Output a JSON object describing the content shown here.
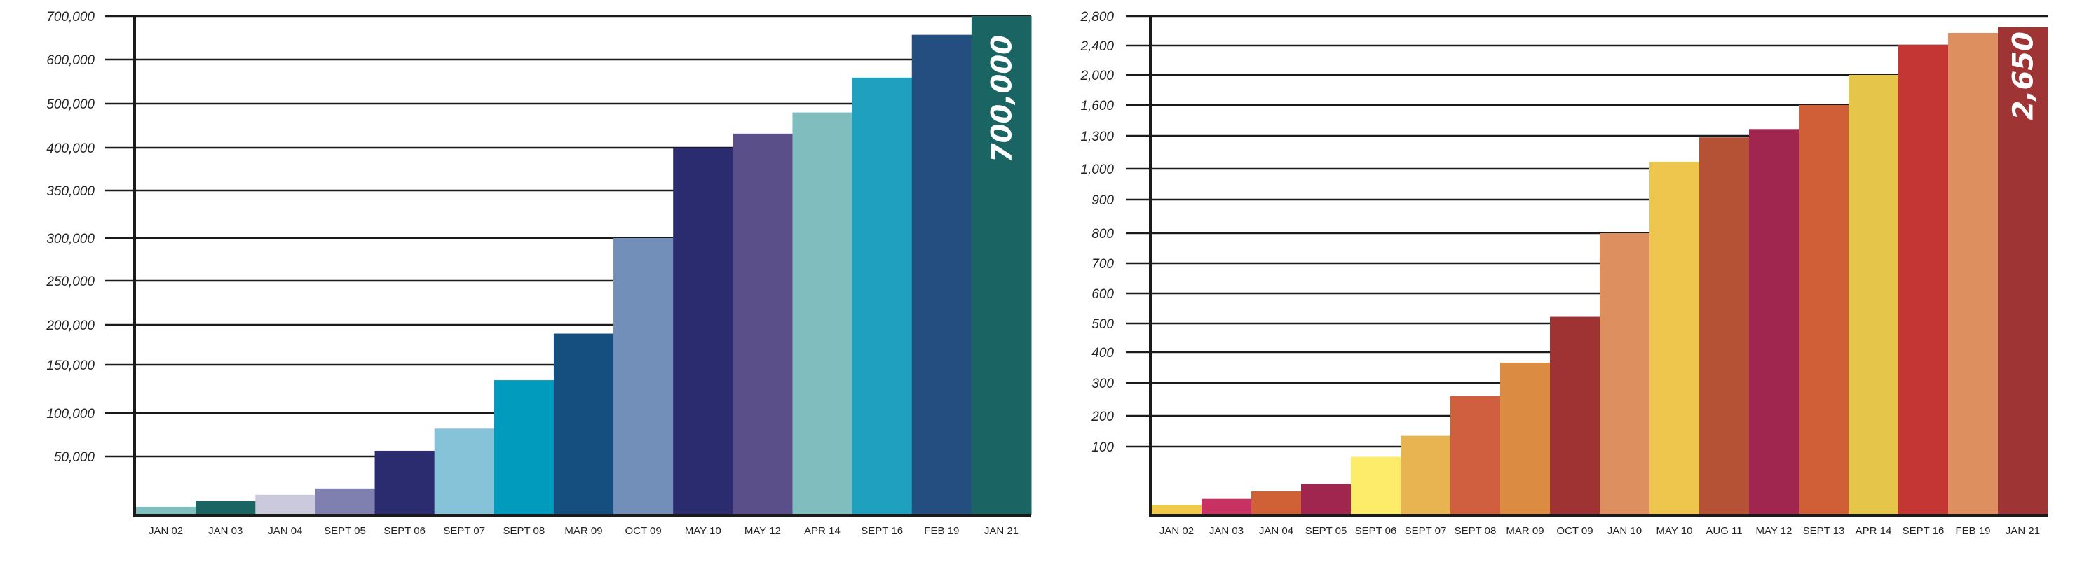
{
  "chart_data": [
    {
      "type": "bar",
      "title": "",
      "xlabel": "",
      "ylabel": "",
      "grid": true,
      "ylim": [
        0,
        700000
      ],
      "y_ticks": [
        "50,000",
        "100,000",
        "150,000",
        "200,000",
        "250,000",
        "300,000",
        "350,000",
        "400,000",
        "500,000",
        "600,000",
        "700,000"
      ],
      "y_tick_values": [
        50000,
        100000,
        150000,
        200000,
        250000,
        300000,
        350000,
        400000,
        500000,
        600000,
        700000
      ],
      "categories": [
        "JAN 02",
        "JAN 03",
        "JAN 04",
        "SEPT 05",
        "SEPT 06",
        "SEPT 07",
        "SEPT 08",
        "MAR 09",
        "OCT 09",
        "MAY 10",
        "MAY 12",
        "APR 14",
        "SEPT 16",
        "FEB 19",
        "JAN 21"
      ],
      "values": [
        6700,
        11500,
        17000,
        22400,
        56500,
        82000,
        134000,
        189000,
        300000,
        400000,
        432000,
        480000,
        559000,
        657000,
        700000
      ],
      "colors": [
        "#7fbfbf",
        "#1b6464",
        "#cacadc",
        "#7f80b0",
        "#2b2b70",
        "#86c2d8",
        "#009bbd",
        "#154f80",
        "#728fba",
        "#2b2b70",
        "#5a4f88",
        "#7fbdbf",
        "#20a0bf",
        "#254e80",
        "#1b6464"
      ],
      "annotation": "700,000"
    },
    {
      "type": "bar",
      "title": "",
      "xlabel": "",
      "ylabel": "",
      "grid": true,
      "ylim": [
        0,
        2800
      ],
      "y_ticks": [
        "100",
        "200",
        "300",
        "400",
        "500",
        "600",
        "700",
        "800",
        "900",
        "1,000",
        "1,300",
        "1,600",
        "2,000",
        "2,400",
        "2,800"
      ],
      "y_tick_values": [
        100,
        200,
        300,
        400,
        500,
        600,
        700,
        800,
        900,
        1000,
        1300,
        1600,
        2000,
        2400,
        2800
      ],
      "categories": [
        "JAN 02",
        "JAN 03",
        "JAN 04",
        "SEPT 05",
        "SEPT 06",
        "SEPT 07",
        "SEPT 08",
        "MAR 09",
        "OCT 09",
        "JAN 10",
        "MAY 10",
        "AUG 11",
        "MAY 12",
        "SEPT 13",
        "APR 14",
        "SEPT 16",
        "FEB 19",
        "JAN 21"
      ],
      "values": [
        14,
        23,
        34,
        45,
        85,
        135,
        260,
        366,
        522,
        800,
        1062,
        1286,
        1366,
        1600,
        2000,
        2410,
        2572,
        2650
      ],
      "colors": [
        "#f0c84a",
        "#c83262",
        "#d06035",
        "#a02650",
        "#fdec6a",
        "#e8b452",
        "#d05f40",
        "#dc8c42",
        "#9f3232",
        "#de8f60",
        "#eec64e",
        "#b55235",
        "#a02650",
        "#d05f38",
        "#e6c64a",
        "#c43634",
        "#de8f60",
        "#9f3434"
      ],
      "annotation": "2,650"
    }
  ]
}
